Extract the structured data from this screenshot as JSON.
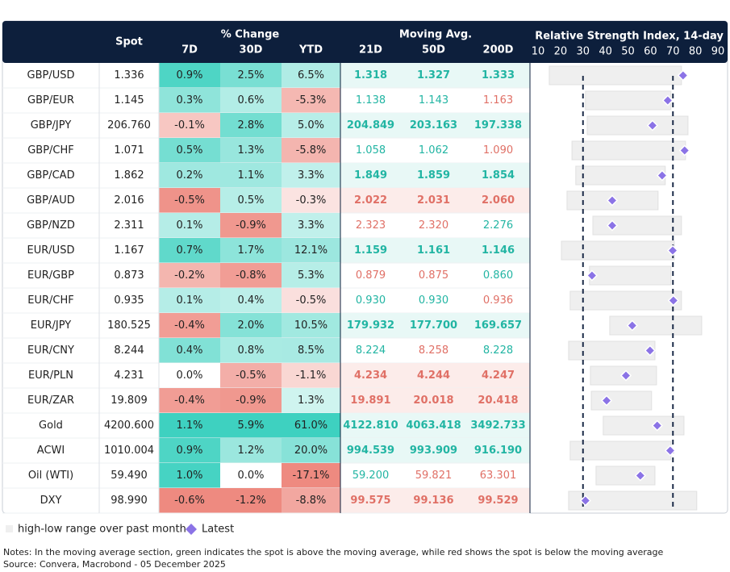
{
  "header": {
    "spot": "Spot",
    "change_group": "% Change",
    "change_cols": [
      "7D",
      "30D",
      "YTD"
    ],
    "ma_group": "Moving Avg.",
    "ma_cols": [
      "21D",
      "50D",
      "200D"
    ],
    "rsi_title": "Relative Strength Index, 14-day"
  },
  "rsi": {
    "xlim": [
      10,
      90
    ],
    "ticks": [
      10,
      20,
      30,
      40,
      50,
      60,
      70,
      80,
      90
    ],
    "reference_lines": [
      30,
      70
    ],
    "range_color": "#efefef",
    "latest_color": "#8b73e6"
  },
  "rows": [
    {
      "name": "GBP/USD",
      "spot": "1.336",
      "change": [
        "0.9%",
        "2.5%",
        "6.5%"
      ],
      "ma": [
        "1.318",
        "1.327",
        "1.333"
      ],
      "ma_bold": true,
      "rsi_low": 15.0,
      "rsi_high": 73.8,
      "rsi_latest": 74.5
    },
    {
      "name": "GBP/EUR",
      "spot": "1.145",
      "change": [
        "0.3%",
        "0.6%",
        "-5.3%"
      ],
      "ma": [
        "1.138",
        "1.143",
        "1.163"
      ],
      "ma_bold": false,
      "rsi_low": 31.1,
      "rsi_high": 69.1,
      "rsi_latest": 67.7
    },
    {
      "name": "GBP/JPY",
      "spot": "206.760",
      "change": [
        "-0.1%",
        "2.8%",
        "5.0%"
      ],
      "ma": [
        "204.849",
        "203.163",
        "197.338"
      ],
      "ma_bold": true,
      "rsi_low": 31.9,
      "rsi_high": 76.7,
      "rsi_latest": 60.9
    },
    {
      "name": "GBP/CHF",
      "spot": "1.071",
      "change": [
        "0.5%",
        "1.3%",
        "-5.8%"
      ],
      "ma": [
        "1.058",
        "1.062",
        "1.090"
      ],
      "ma_bold": false,
      "rsi_low": 25.1,
      "rsi_high": 75.6,
      "rsi_latest": 75.2
    },
    {
      "name": "GBP/CAD",
      "spot": "1.862",
      "change": [
        "0.2%",
        "1.1%",
        "3.3%"
      ],
      "ma": [
        "1.849",
        "1.859",
        "1.854"
      ],
      "ma_bold": true,
      "rsi_low": 26.8,
      "rsi_high": 66.6,
      "rsi_latest": 65.2
    },
    {
      "name": "GBP/AUD",
      "spot": "2.016",
      "change": [
        "-0.5%",
        "0.5%",
        "-0.3%"
      ],
      "ma": [
        "2.022",
        "2.031",
        "2.060"
      ],
      "ma_bold": true,
      "rsi_low": 22.9,
      "rsi_high": 63.4,
      "rsi_latest": 43.0
    },
    {
      "name": "GBP/NZD",
      "spot": "2.311",
      "change": [
        "0.1%",
        "-0.9%",
        "3.3%"
      ],
      "ma": [
        "2.323",
        "2.320",
        "2.276"
      ],
      "ma_bold": false,
      "rsi_low": 34.4,
      "rsi_high": 73.8,
      "rsi_latest": 43.0
    },
    {
      "name": "EUR/USD",
      "spot": "1.167",
      "change": [
        "0.7%",
        "1.7%",
        "12.1%"
      ],
      "ma": [
        "1.159",
        "1.161",
        "1.146"
      ],
      "ma_bold": true,
      "rsi_low": 20.4,
      "rsi_high": 70.6,
      "rsi_latest": 69.9
    },
    {
      "name": "EUR/GBP",
      "spot": "0.873",
      "change": [
        "-0.2%",
        "-0.8%",
        "5.3%"
      ],
      "ma": [
        "0.879",
        "0.875",
        "0.860"
      ],
      "ma_bold": false,
      "rsi_low": 32.9,
      "rsi_high": 69.1,
      "rsi_latest": 34.0
    },
    {
      "name": "EUR/CHF",
      "spot": "0.935",
      "change": [
        "0.1%",
        "0.4%",
        "-0.5%"
      ],
      "ma": [
        "0.930",
        "0.930",
        "0.936"
      ],
      "ma_bold": false,
      "rsi_low": 24.3,
      "rsi_high": 73.8,
      "rsi_latest": 70.2
    },
    {
      "name": "EUR/JPY",
      "spot": "180.525",
      "change": [
        "-0.4%",
        "2.0%",
        "10.5%"
      ],
      "ma": [
        "179.932",
        "177.700",
        "169.657"
      ],
      "ma_bold": true,
      "rsi_low": 41.9,
      "rsi_high": 82.8,
      "rsi_latest": 51.9
    },
    {
      "name": "EUR/CNY",
      "spot": "8.244",
      "change": [
        "0.4%",
        "0.8%",
        "8.5%"
      ],
      "ma": [
        "8.224",
        "8.258",
        "8.228"
      ],
      "ma_bold": false,
      "rsi_low": 23.6,
      "rsi_high": 62.0,
      "rsi_latest": 59.8
    },
    {
      "name": "EUR/PLN",
      "spot": "4.231",
      "change": [
        "0.0%",
        "-0.5%",
        "-1.1%"
      ],
      "ma": [
        "4.234",
        "4.244",
        "4.247"
      ],
      "ma_bold": true,
      "rsi_low": 33.3,
      "rsi_high": 62.7,
      "rsi_latest": 49.1
    },
    {
      "name": "EUR/ZAR",
      "spot": "19.809",
      "change": [
        "-0.4%",
        "-0.9%",
        "1.3%"
      ],
      "ma": [
        "19.891",
        "20.018",
        "20.418"
      ],
      "ma_bold": true,
      "rsi_low": 33.7,
      "rsi_high": 60.5,
      "rsi_latest": 40.5
    },
    {
      "name": "Gold",
      "spot": "4200.600",
      "change": [
        "1.1%",
        "5.9%",
        "61.0%"
      ],
      "ma": [
        "4122.810",
        "4063.418",
        "3492.733"
      ],
      "ma_bold": true,
      "rsi_low": 39.0,
      "rsi_high": 74.9,
      "rsi_latest": 63.0
    },
    {
      "name": "ACWI",
      "spot": "1010.004",
      "change": [
        "0.9%",
        "1.2%",
        "20.0%"
      ],
      "ma": [
        "994.539",
        "993.909",
        "916.190"
      ],
      "ma_bold": true,
      "rsi_low": 24.3,
      "rsi_high": 69.1,
      "rsi_latest": 68.8
    },
    {
      "name": "Oil (WTI)",
      "spot": "59.490",
      "change": [
        "1.0%",
        "0.0%",
        "-17.1%"
      ],
      "ma": [
        "59.200",
        "59.821",
        "63.301"
      ],
      "ma_bold": false,
      "rsi_low": 35.8,
      "rsi_high": 62.0,
      "rsi_latest": 55.5
    },
    {
      "name": "DXY",
      "spot": "98.990",
      "change": [
        "-0.6%",
        "-1.2%",
        "-8.8%"
      ],
      "ma": [
        "99.575",
        "99.136",
        "99.529"
      ],
      "ma_bold": true,
      "rsi_low": 23.6,
      "rsi_high": 80.6,
      "rsi_latest": 31.1
    }
  ],
  "legend": {
    "range": "high-low range over past month",
    "latest": "Latest"
  },
  "notes": "Notes: In the moving average section, green indicates the spot is above the moving average, while red shows the spot is below the moving average",
  "source": "Source: Convera, Macrobond - 05 December 2025"
}
